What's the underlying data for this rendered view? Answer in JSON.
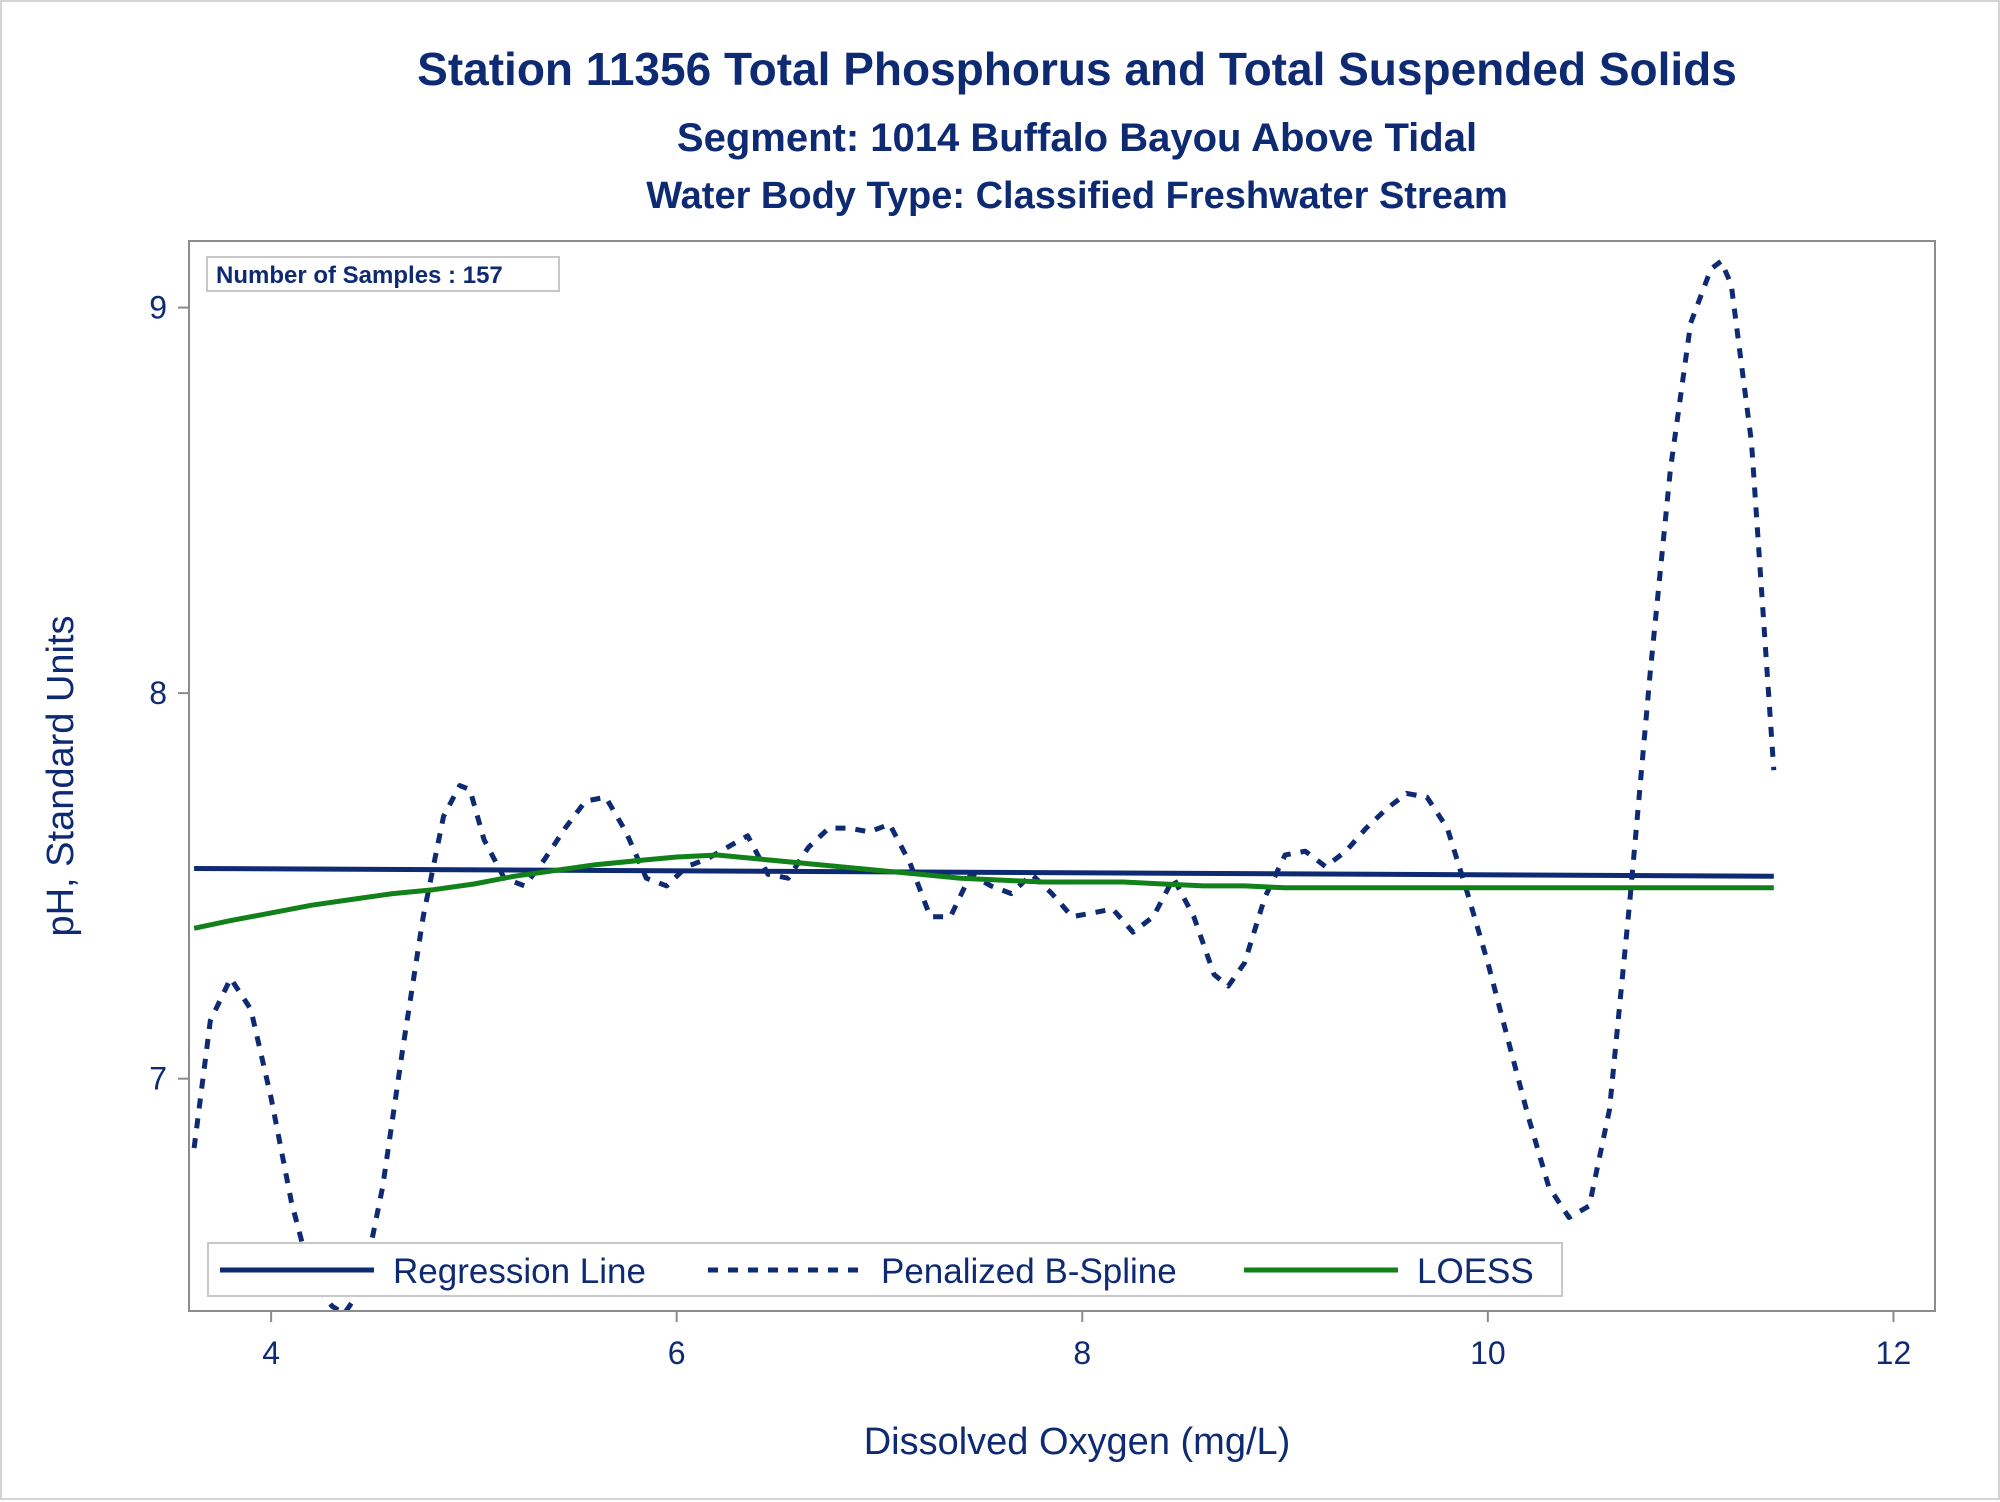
{
  "chart_data": {
    "type": "line",
    "title": "Station 11356  Total Phosphorus and Total Suspended Solids",
    "subtitle": "Segment: 1014  Buffalo Bayou Above Tidal",
    "subtitle2": "Water Body Type: Classified Freshwater Stream",
    "xlabel": "Dissolved Oxygen (mg/L)",
    "ylabel": "pH, Standard Units",
    "xlim": [
      3.6,
      12.2
    ],
    "ylim": [
      6.4,
      9.17
    ],
    "xticks": [
      4,
      6,
      8,
      10,
      12
    ],
    "xtick_labels": [
      "4",
      "6",
      "8",
      "10",
      "12"
    ],
    "yticks": [
      7,
      8,
      9
    ],
    "ytick_labels": [
      "7",
      "8",
      "9"
    ],
    "grid": false,
    "legend_position": "bottom-left",
    "inset_text": "Number of Samples : 157",
    "series": [
      {
        "name": "Regression Line",
        "color": "#0d2a73",
        "style": "solid",
        "x": [
          3.62,
          11.41
        ],
        "y": [
          7.545,
          7.525
        ]
      },
      {
        "name": "Penalized B-Spline",
        "color": "#0d2a73",
        "style": "dashed",
        "x": [
          3.62,
          3.7,
          3.8,
          3.9,
          4.0,
          4.1,
          4.2,
          4.3,
          4.36,
          4.45,
          4.55,
          4.65,
          4.75,
          4.85,
          4.93,
          4.98,
          5.05,
          5.15,
          5.25,
          5.35,
          5.45,
          5.55,
          5.65,
          5.75,
          5.85,
          5.95,
          6.05,
          6.15,
          6.25,
          6.35,
          6.45,
          6.55,
          6.65,
          6.75,
          6.85,
          6.95,
          7.05,
          7.15,
          7.25,
          7.35,
          7.45,
          7.55,
          7.65,
          7.75,
          7.85,
          7.95,
          8.05,
          8.15,
          8.25,
          8.35,
          8.45,
          8.55,
          8.65,
          8.72,
          8.8,
          8.9,
          9.0,
          9.1,
          9.2,
          9.3,
          9.4,
          9.5,
          9.6,
          9.7,
          9.8,
          9.9,
          10.0,
          10.1,
          10.2,
          10.3,
          10.4,
          10.5,
          10.6,
          10.7,
          10.8,
          10.9,
          11.0,
          11.1,
          11.15,
          11.2,
          11.3,
          11.41
        ],
        "y": [
          6.82,
          7.15,
          7.26,
          7.18,
          6.95,
          6.68,
          6.48,
          6.41,
          6.39,
          6.46,
          6.72,
          7.08,
          7.42,
          7.68,
          7.76,
          7.75,
          7.62,
          7.52,
          7.5,
          7.57,
          7.65,
          7.72,
          7.73,
          7.64,
          7.52,
          7.5,
          7.55,
          7.57,
          7.6,
          7.63,
          7.53,
          7.52,
          7.6,
          7.65,
          7.65,
          7.64,
          7.66,
          7.56,
          7.42,
          7.42,
          7.53,
          7.5,
          7.48,
          7.53,
          7.48,
          7.42,
          7.43,
          7.44,
          7.38,
          7.42,
          7.52,
          7.42,
          7.27,
          7.24,
          7.3,
          7.47,
          7.58,
          7.59,
          7.55,
          7.59,
          7.65,
          7.7,
          7.74,
          7.73,
          7.65,
          7.48,
          7.3,
          7.1,
          6.9,
          6.72,
          6.64,
          6.67,
          6.92,
          7.46,
          8.05,
          8.58,
          8.96,
          9.1,
          9.12,
          9.06,
          8.65,
          7.8
        ]
      },
      {
        "name": "LOESS",
        "color": "#13811a",
        "style": "solid",
        "x": [
          3.62,
          3.8,
          4.0,
          4.2,
          4.4,
          4.6,
          4.8,
          5.0,
          5.2,
          5.4,
          5.6,
          5.8,
          6.0,
          6.2,
          6.4,
          6.6,
          6.8,
          7.0,
          7.2,
          7.4,
          7.6,
          7.8,
          8.0,
          8.2,
          8.4,
          8.6,
          8.8,
          9.0,
          9.5,
          10.0,
          10.5,
          11.0,
          11.41
        ],
        "y": [
          7.39,
          7.41,
          7.43,
          7.45,
          7.465,
          7.48,
          7.49,
          7.505,
          7.525,
          7.54,
          7.555,
          7.565,
          7.575,
          7.58,
          7.57,
          7.56,
          7.55,
          7.54,
          7.53,
          7.52,
          7.515,
          7.51,
          7.51,
          7.51,
          7.505,
          7.5,
          7.5,
          7.495,
          7.495,
          7.495,
          7.495,
          7.495,
          7.495
        ]
      }
    ]
  }
}
